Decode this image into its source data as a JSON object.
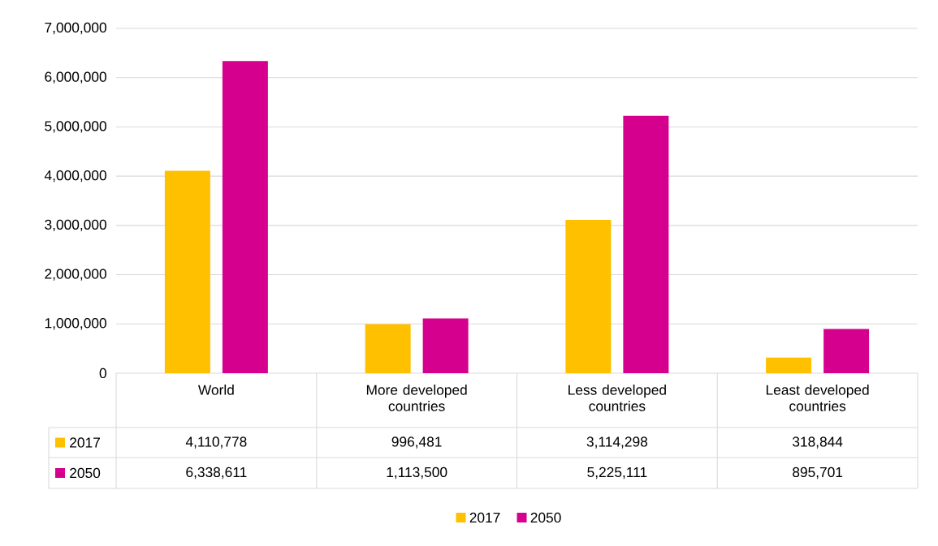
{
  "chart_data": {
    "type": "bar",
    "categories": [
      "World",
      "More developed countries",
      "Less developed countries",
      "Least developed countries"
    ],
    "series": [
      {
        "name": "2017",
        "color": "#ffc000",
        "values": [
          4110778,
          996481,
          3114298,
          318844
        ],
        "value_labels": [
          "4,110,778",
          "996,481",
          "3,114,298",
          "318,844"
        ]
      },
      {
        "name": "2050",
        "color": "#d6008f",
        "values": [
          6338611,
          1113500,
          5225111,
          895701
        ],
        "value_labels": [
          "6,338,611",
          "1,113,500",
          "5,225,111",
          "895,701"
        ]
      }
    ],
    "ylim": [
      0,
      7000000
    ],
    "yticks": [
      0,
      {
        "value": 1000000,
        "label": "1,000,000"
      },
      {
        "value": 2000000,
        "label": "2,000,000"
      },
      {
        "value": 3000000,
        "label": "3,000,000"
      },
      {
        "value": 4000000,
        "label": "4,000,000"
      },
      {
        "value": 5000000,
        "label": "5,000,000"
      },
      {
        "value": 6000000,
        "label": "6,000,000"
      },
      {
        "value": 7000000,
        "label": "7,000,000"
      }
    ],
    "grid": "y",
    "legend": "bottom",
    "data_labels": true
  }
}
